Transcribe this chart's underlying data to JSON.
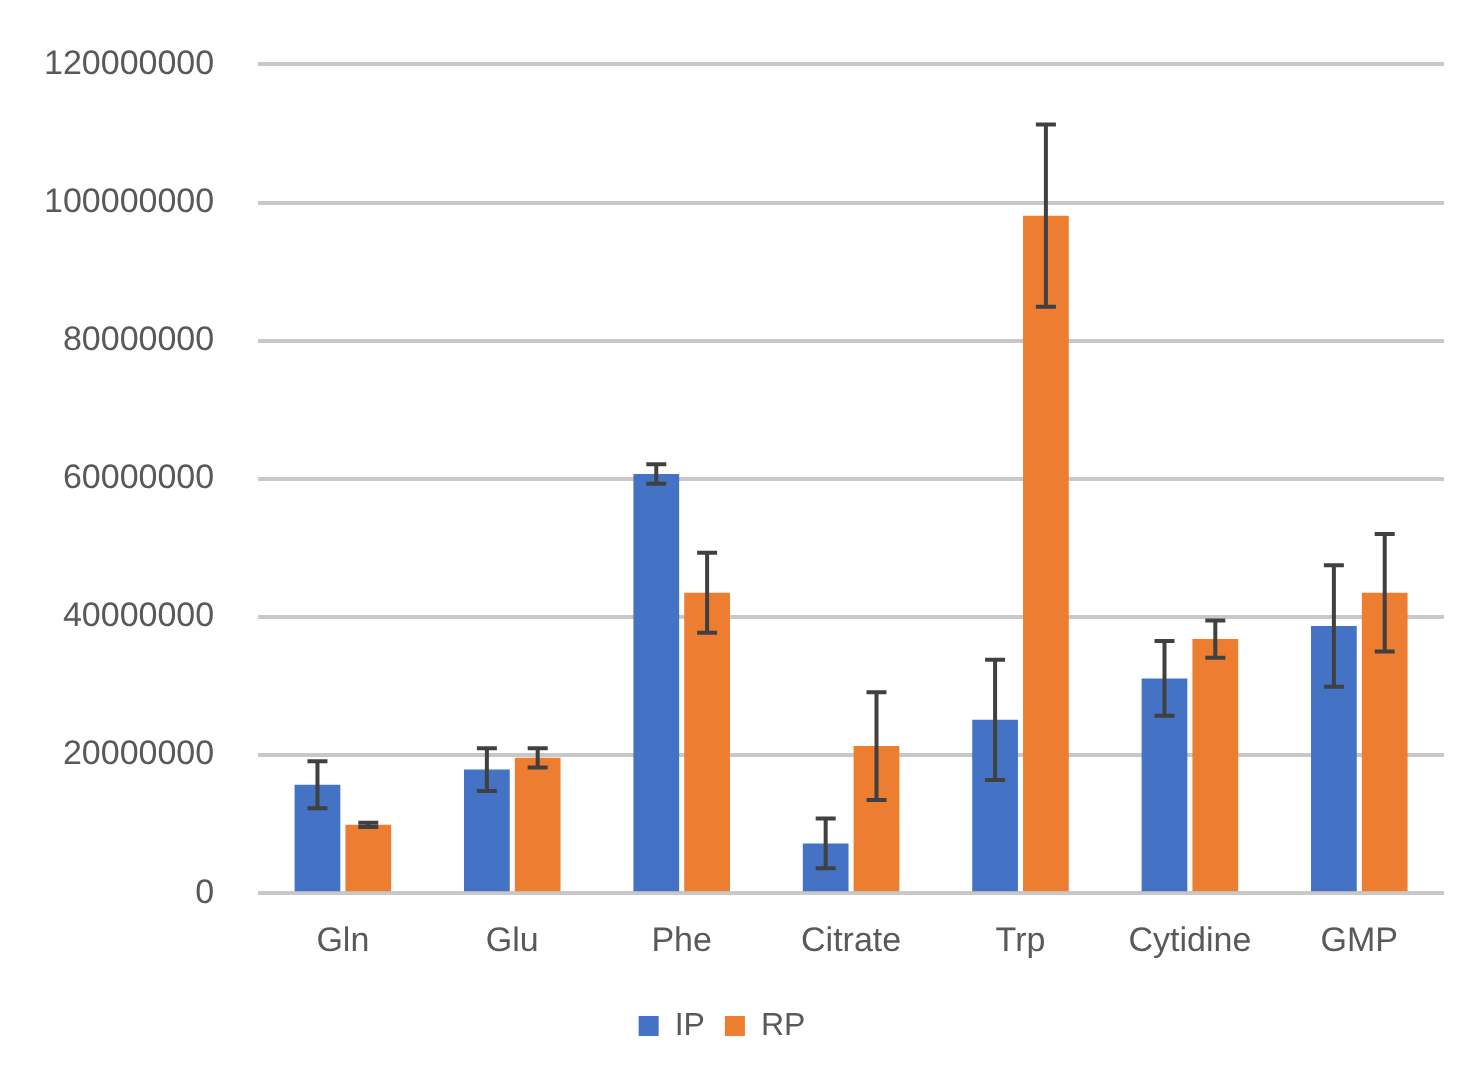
{
  "chart_data": {
    "type": "bar",
    "categories": [
      "Gln",
      "Glu",
      "Phe",
      "Citrate",
      "Trp",
      "Cytidine",
      "GMP"
    ],
    "series": [
      {
        "name": "IP",
        "color": "#4472c4",
        "values": [
          15700000,
          17900000,
          60700000,
          7200000,
          25100000,
          31100000,
          38700000
        ],
        "errors": [
          3400000,
          3100000,
          1400000,
          3600000,
          8700000,
          5400000,
          8800000
        ]
      },
      {
        "name": "RP",
        "color": "#ed7d31",
        "values": [
          9900000,
          19600000,
          43500000,
          21300000,
          98100000,
          36800000,
          43500000
        ],
        "errors": [
          300000,
          1400000,
          5800000,
          7800000,
          13200000,
          2700000,
          8500000
        ]
      }
    ],
    "ylim": [
      0,
      120000000
    ],
    "yticks": [
      0,
      20000000,
      40000000,
      60000000,
      80000000,
      100000000,
      120000000
    ],
    "grid": "y",
    "legend": "bottom"
  }
}
